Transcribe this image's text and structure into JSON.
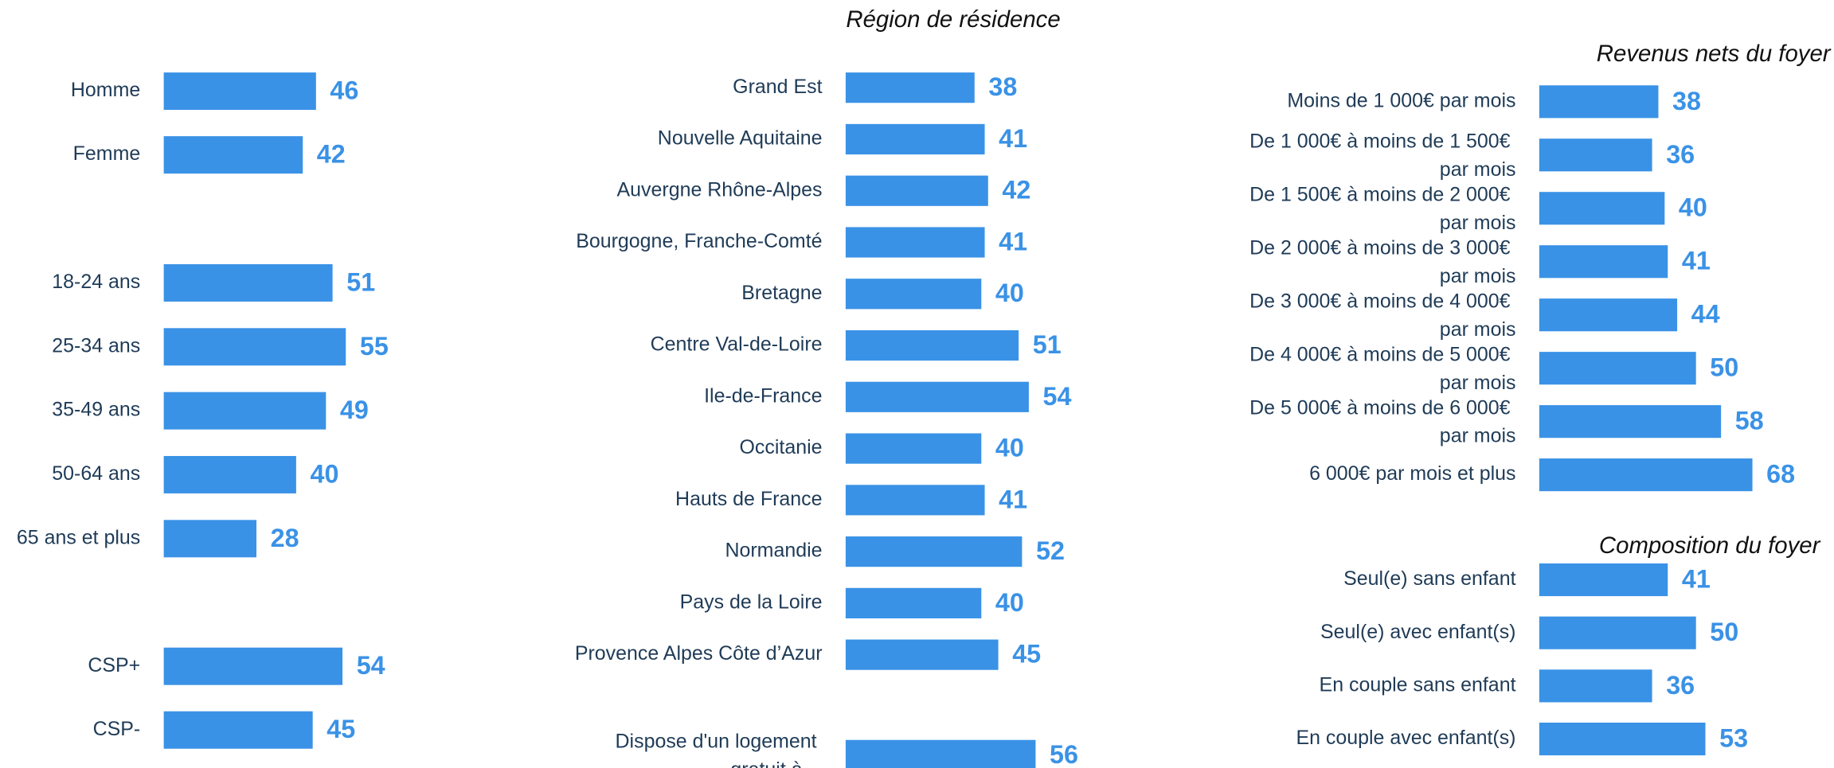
{
  "chart_data": [
    {
      "type": "bar",
      "categories": [
        "Homme",
        "Femme"
      ],
      "values": [
        46,
        42
      ],
      "color": "#3a92e6"
    },
    {
      "type": "bar",
      "categories": [
        "18-24 ans",
        "25-34 ans",
        "35-49 ans",
        "50-64 ans",
        "65 ans et plus"
      ],
      "values": [
        51,
        55,
        49,
        40,
        28
      ],
      "color": "#3a92e6"
    },
    {
      "type": "bar",
      "categories": [
        "CSP+",
        "CSP-"
      ],
      "values": [
        54,
        45
      ],
      "color": "#3a92e6"
    },
    {
      "type": "bar",
      "title": "Région de résidence",
      "categories": [
        "Grand Est",
        "Nouvelle Aquitaine",
        "Auvergne Rhône-Alpes",
        "Bourgogne, Franche-Comté",
        "Bretagne",
        "Centre Val-de-Loire",
        "Ile-de-France",
        "Occitanie",
        "Hauts de France",
        "Normandie",
        "Pays de la Loire",
        "Provence Alpes Côte d’Azur"
      ],
      "values": [
        38,
        41,
        42,
        41,
        40,
        51,
        54,
        40,
        41,
        52,
        40,
        45
      ],
      "color": "#3a92e6"
    },
    {
      "type": "bar",
      "categories": [
        "Dispose d'un logement gratuit à…"
      ],
      "values": [
        56
      ],
      "color": "#3a92e6"
    },
    {
      "type": "bar",
      "title": "Revenus nets du foyer",
      "categories": [
        "Moins de 1 000€ par mois",
        "De 1 000€ à moins de 1 500€ par mois",
        "De 1 500€ à moins de 2 000€ par mois",
        "De 2 000€ à moins de 3 000€ par mois",
        "De 3 000€ à moins de 4 000€ par mois",
        "De 4 000€ à moins de 5 000€ par mois",
        "De 5 000€ à moins de 6 000€ par mois",
        "6 000€ par mois et plus"
      ],
      "values": [
        38,
        36,
        40,
        41,
        44,
        50,
        58,
        68
      ],
      "color": "#3a92e6"
    },
    {
      "type": "bar",
      "title": "Composition du foyer",
      "categories": [
        "Seul(e) sans enfant",
        "Seul(e) avec enfant(s)",
        "En couple sans enfant",
        "En couple avec enfant(s)"
      ],
      "values": [
        41,
        50,
        36,
        53
      ],
      "color": "#3a92e6"
    }
  ]
}
